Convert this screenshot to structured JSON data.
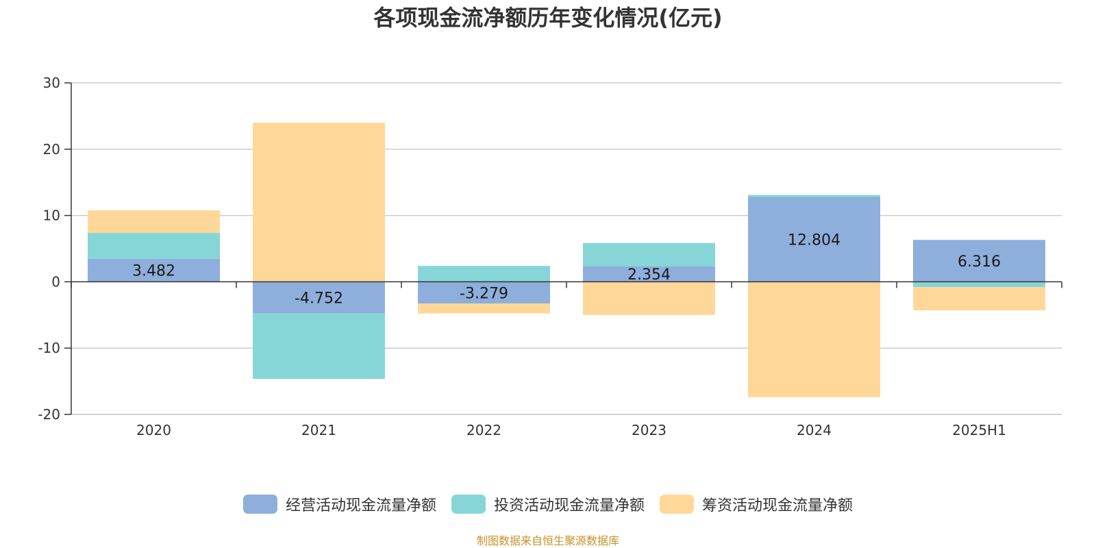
{
  "chart_data": {
    "type": "bar",
    "stacked": true,
    "title": "各项现金流净额历年变化情况(亿元)",
    "xlabel": "",
    "ylabel": "",
    "ylim": [
      -20,
      30
    ],
    "yticks": [
      30,
      20,
      10,
      0,
      -10,
      -20
    ],
    "grid": true,
    "legend_position": "bottom-center",
    "categories": [
      "2020",
      "2021",
      "2022",
      "2023",
      "2024",
      "2025H1"
    ],
    "series": [
      {
        "name": "经营活动现金流量净额",
        "color": "#8eaedc",
        "values": [
          3.482,
          -4.752,
          -3.279,
          2.354,
          12.804,
          6.316
        ],
        "labels": [
          "3.482",
          "-4.752",
          "-3.279",
          "2.354",
          "12.804",
          "6.316"
        ]
      },
      {
        "name": "投资活动现金流量净额",
        "color": "#86d6d8",
        "values": [
          3.9,
          -9.9,
          2.4,
          3.5,
          0.3,
          -0.8
        ]
      },
      {
        "name": "筹资活动现金流量净额",
        "color": "#ffd899",
        "values": [
          3.4,
          24.0,
          -1.5,
          -5.0,
          -17.4,
          -3.5
        ]
      }
    ]
  },
  "source_note": "制图数据来自恒生聚源数据库"
}
